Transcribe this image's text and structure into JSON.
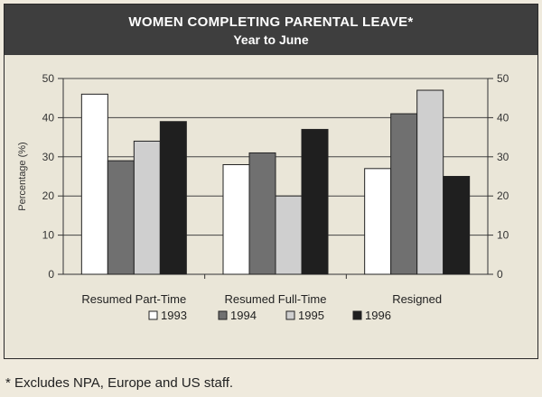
{
  "chart_data": {
    "type": "bar",
    "title": "WOMEN COMPLETING PARENTAL LEAVE*",
    "subtitle": "Year to June",
    "xlabel": "",
    "ylabel": "Percentage (%)",
    "ylim": [
      0,
      50
    ],
    "yticks": [
      0,
      10,
      20,
      30,
      40,
      50
    ],
    "grid": true,
    "legend_position": "bottom",
    "categories": [
      "Resumed Part-Time",
      "Resumed Full-Time",
      "Resigned"
    ],
    "series": [
      {
        "name": "1993",
        "color": "#ffffff",
        "values": [
          46,
          28,
          27
        ]
      },
      {
        "name": "1994",
        "color": "#707070",
        "values": [
          29,
          31,
          41
        ]
      },
      {
        "name": "1995",
        "color": "#cfcfcf",
        "values": [
          34,
          20,
          47
        ]
      },
      {
        "name": "1996",
        "color": "#1f1f1f",
        "values": [
          39,
          37,
          25
        ]
      }
    ]
  },
  "footnote": "* Excludes NPA, Europe and US staff."
}
